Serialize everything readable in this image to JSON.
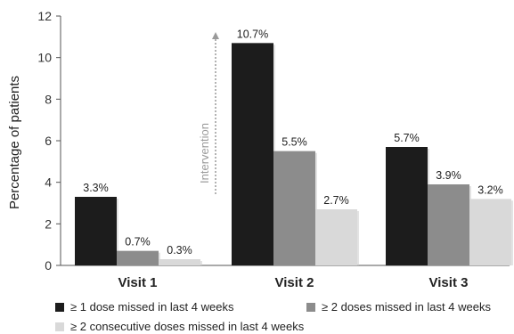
{
  "chart_data": {
    "type": "bar",
    "ylabel": "Percentage of patients",
    "ylim": [
      0,
      12
    ],
    "yticks": [
      0,
      2,
      4,
      6,
      8,
      10,
      12
    ],
    "categories": [
      "Visit 1",
      "Visit 2",
      "Visit 3"
    ],
    "series": [
      {
        "name": "≥ 1 dose missed in last 4 weeks",
        "color": "#1c1c1c",
        "values": [
          3.3,
          10.7,
          5.7
        ],
        "labels": [
          "3.3%",
          "10.7%",
          "5.7%"
        ]
      },
      {
        "name": "≥ 2 doses missed in last 4 weeks",
        "color": "#8c8c8c",
        "values": [
          0.7,
          5.5,
          3.9
        ],
        "labels": [
          "0.7%",
          "5.5%",
          "3.9%"
        ]
      },
      {
        "name": "≥ 2 consecutive doses missed in last 4 weeks",
        "color": "#d9d9d9",
        "values": [
          0.3,
          2.7,
          3.2
        ],
        "labels": [
          "0.3%",
          "2.7%",
          "3.2%"
        ]
      }
    ],
    "annotation": {
      "text": "Intervention",
      "color": "#9a9a9a"
    },
    "grid": false,
    "legend_position": "bottom"
  }
}
